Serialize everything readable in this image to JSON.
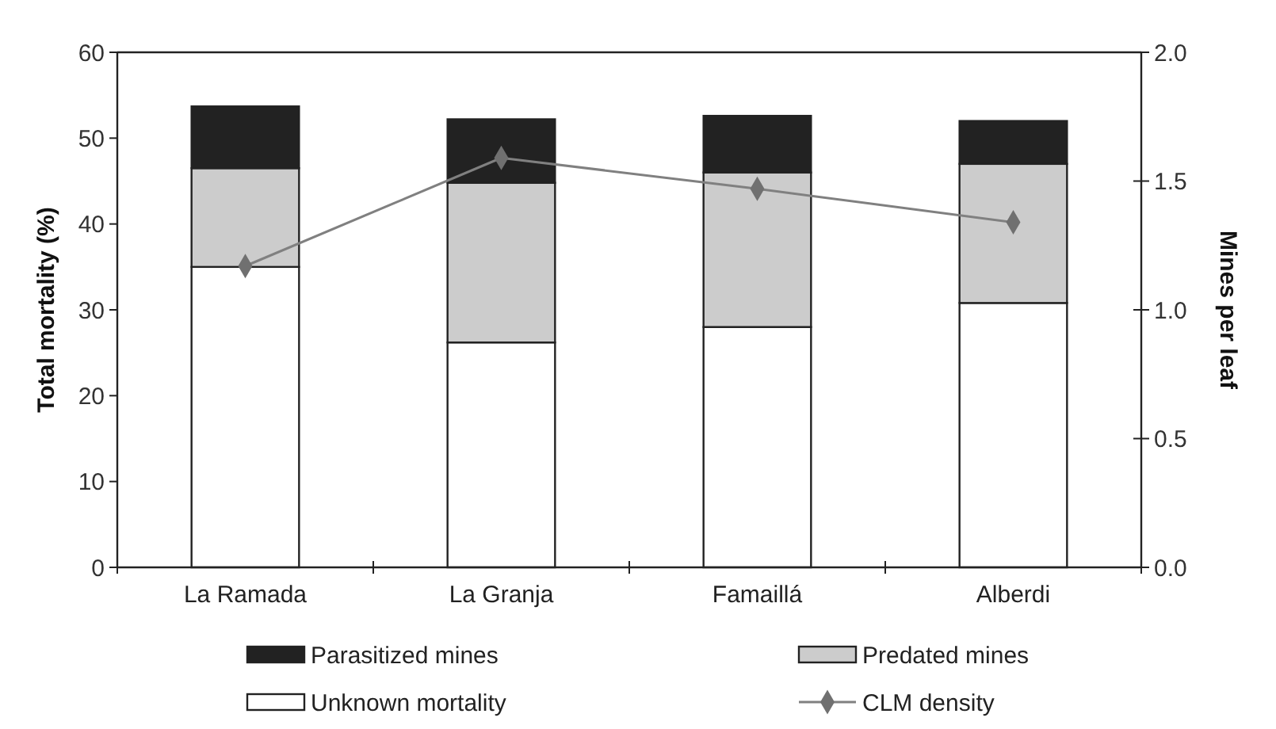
{
  "chart_data": {
    "type": "bar",
    "stacked": true,
    "ylabel": "Total mortality (%)",
    "y2label": "Mines per leaf",
    "categories": [
      "La Ramada",
      "La Granja",
      "Famaillá",
      "Alberdi"
    ],
    "series": [
      {
        "name": "Unknown mortality",
        "color": "#ffffff",
        "values": [
          35,
          26.2,
          28,
          30.8
        ]
      },
      {
        "name": "Predated mines",
        "color": "#cccccc",
        "values": [
          11.5,
          18.6,
          18,
          16.2
        ]
      },
      {
        "name": "Parasitized mines",
        "color": "#222222",
        "values": [
          7.2,
          7.4,
          6.6,
          5
        ]
      },
      {
        "name": "CLM density",
        "type": "line",
        "axis": "y2",
        "color": "#808080",
        "marker": "diamond",
        "values": [
          1.17,
          1.59,
          1.47,
          1.34
        ]
      }
    ],
    "ylim": [
      0,
      60
    ],
    "yticks": [
      0,
      10,
      20,
      30,
      40,
      50,
      60
    ],
    "y2lim": [
      0,
      2
    ],
    "y2ticks": [
      {
        "value": 0,
        "label": "0.0"
      },
      {
        "value": 0.5,
        "label": "0.5"
      },
      {
        "value": 1,
        "label": "1.0"
      },
      {
        "value": 1.5,
        "label": "1.5"
      },
      {
        "value": 2,
        "label": "2.0"
      }
    ],
    "legend": "bottom",
    "grid": false
  }
}
